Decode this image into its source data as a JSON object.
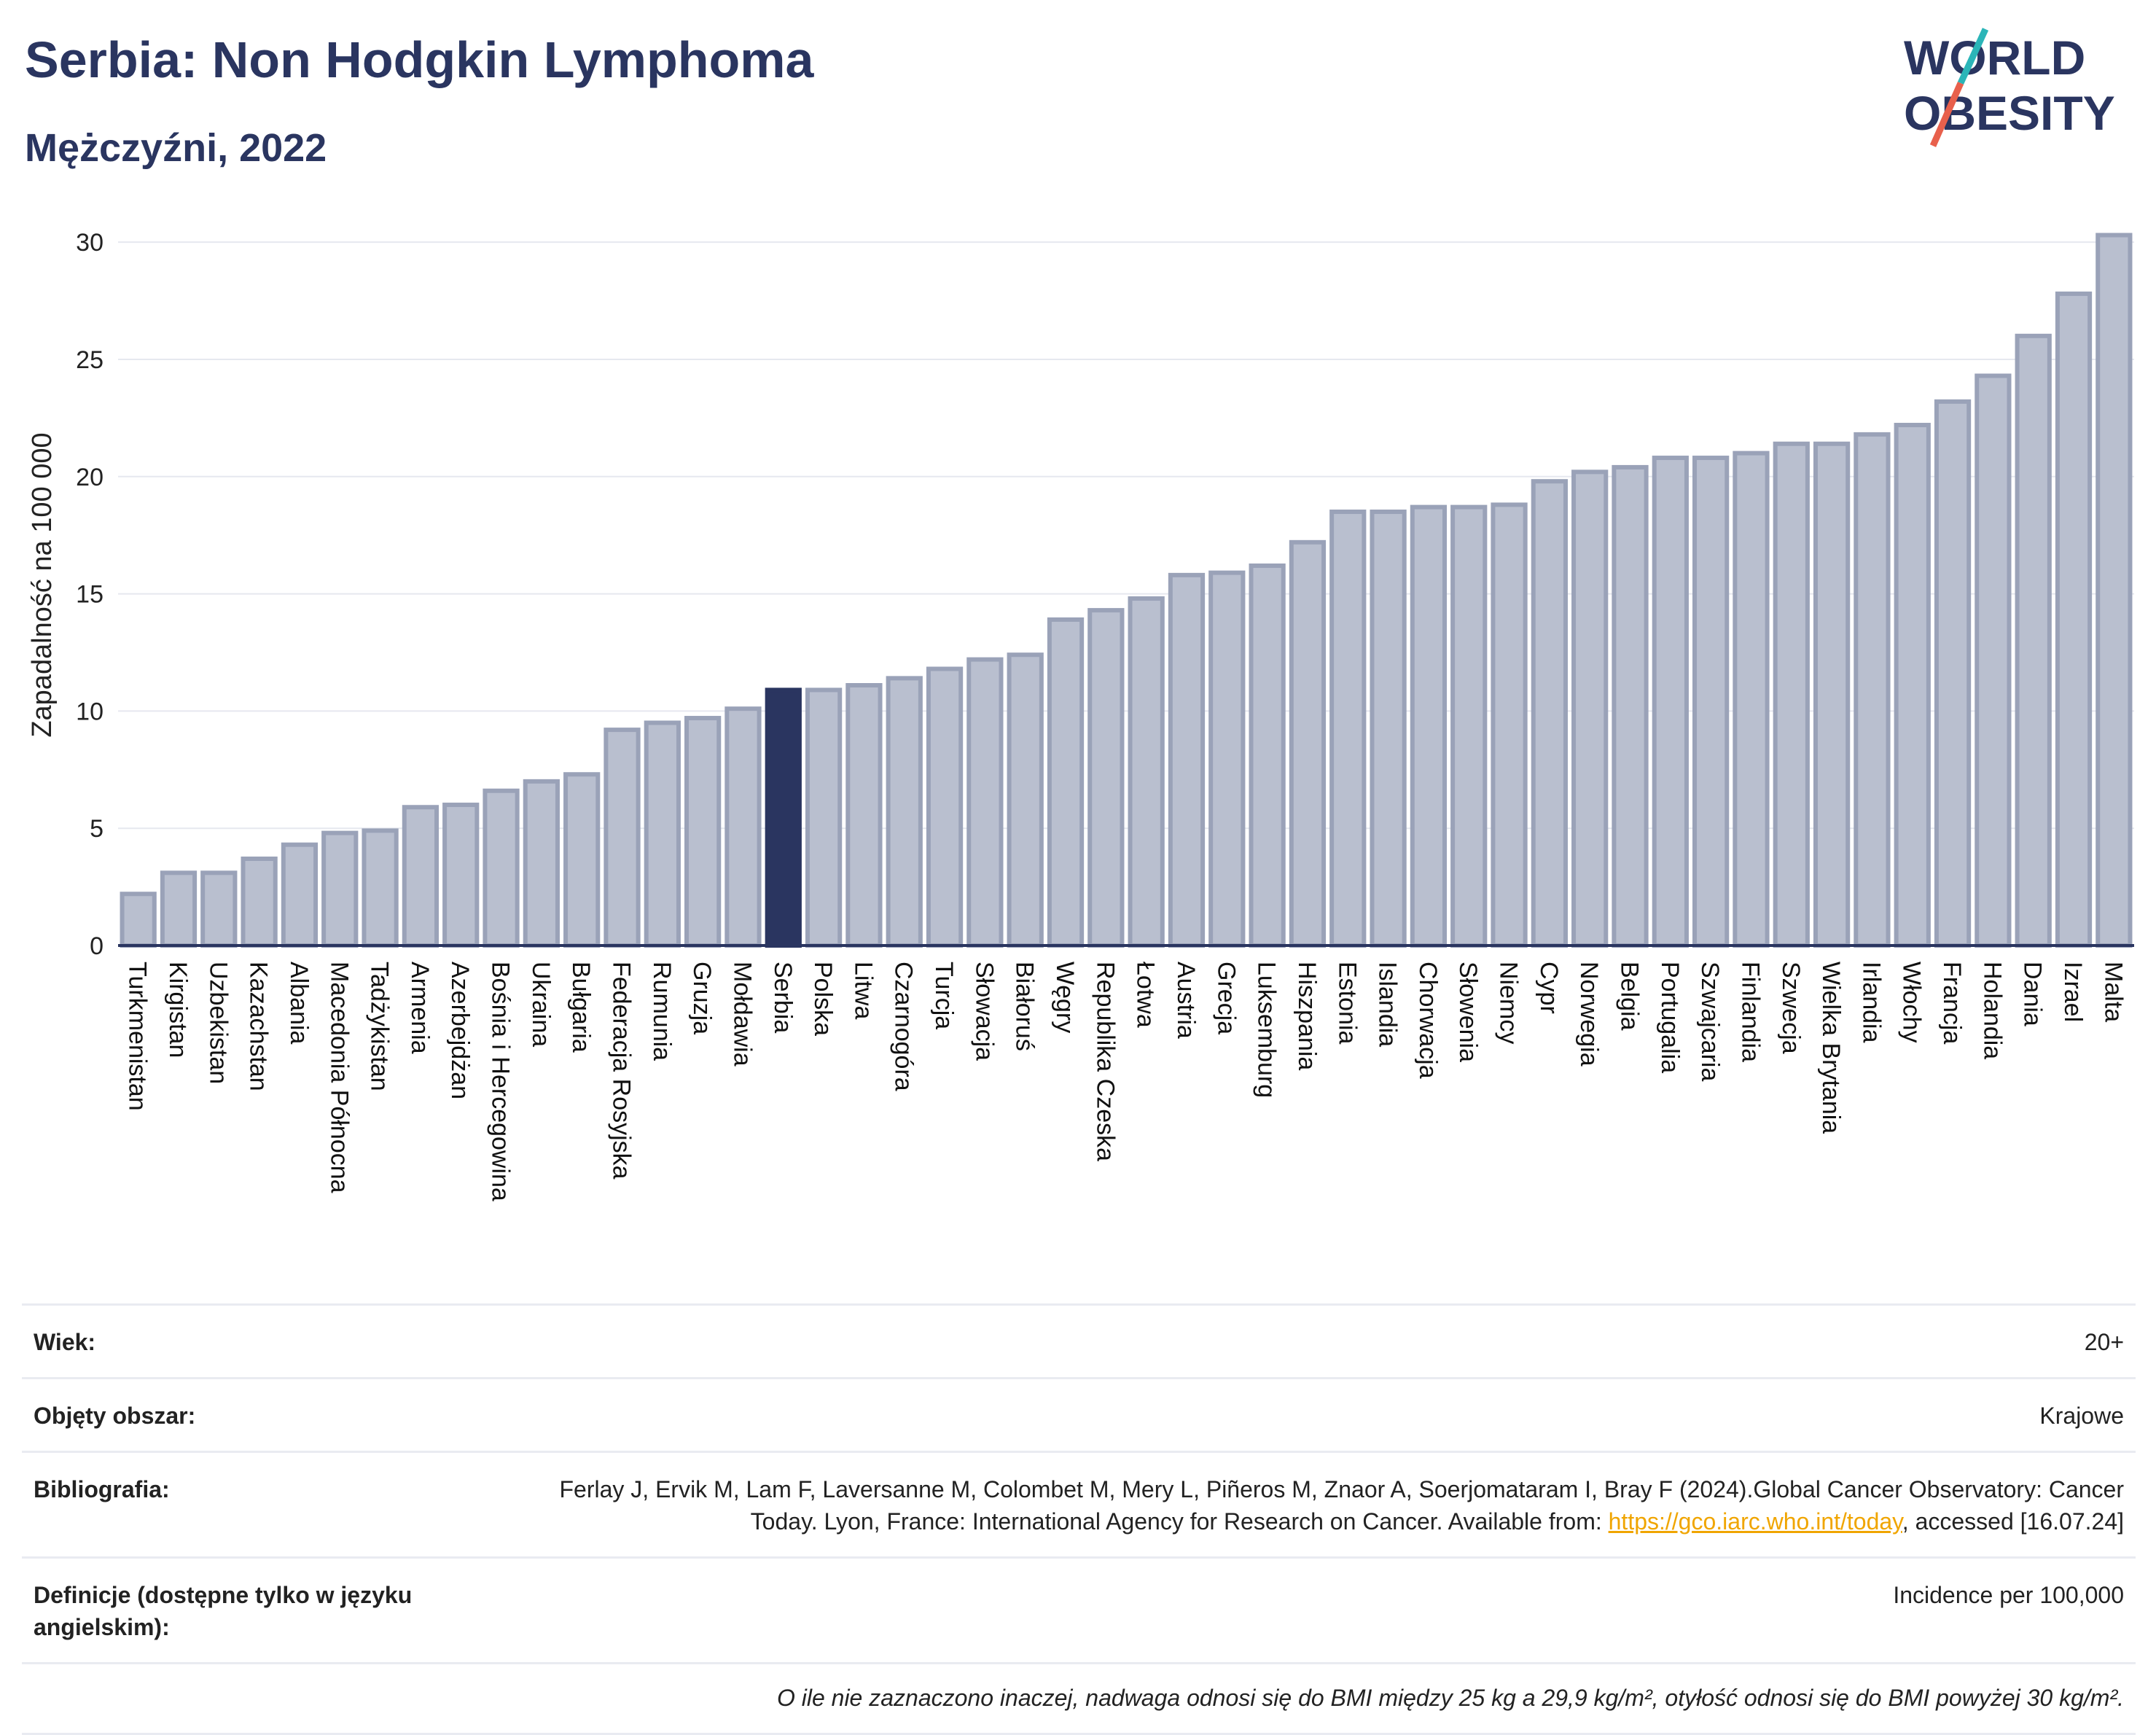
{
  "header": {
    "title": "Serbia: Non Hodgkin Lymphoma",
    "subtitle": "Mężczyźni, 2022"
  },
  "logo": {
    "line1": "WORLD",
    "line2": "OBESITY",
    "accent_colors": [
      "#2bb5b8",
      "#e8604c"
    ]
  },
  "chart_data": {
    "type": "bar",
    "ylabel": "Zapadalność na 100 000",
    "ylim": [
      0,
      31
    ],
    "yticks": [
      0,
      5,
      10,
      15,
      20,
      25,
      30
    ],
    "grid": true,
    "highlight": "Serbia",
    "colors": {
      "bar": "#b9bfcf",
      "bar_border": "#9aa2b8",
      "highlight": "#2a3560",
      "grid": "#e6e8ef",
      "axis": "#2a3560"
    },
    "categories": [
      "Turkmenistan",
      "Kirgistan",
      "Uzbekistan",
      "Kazachstan",
      "Albania",
      "Macedonia Północna",
      "Tadżykistan",
      "Armenia",
      "Azerbejdżan",
      "Bośnia i Hercegowina",
      "Ukraina",
      "Bułgaria",
      "Federacja Rosyjska",
      "Rumunia",
      "Gruzja",
      "Mołdawia",
      "Serbia",
      "Polska",
      "Litwa",
      "Czarnogóra",
      "Turcja",
      "Słowacja",
      "Białoruś",
      "Węgry",
      "Republika Czeska",
      "Łotwa",
      "Austria",
      "Grecja",
      "Luksemburg",
      "Hiszpania",
      "Estonia",
      "Islandia",
      "Chorwacja",
      "Słowenia",
      "Niemcy",
      "Cypr",
      "Norwegia",
      "Belgia",
      "Portugalia",
      "Szwajcaria",
      "Finlandia",
      "Szwecja",
      "Wielka Brytania",
      "Irlandia",
      "Włochy",
      "Francja",
      "Holandia",
      "Dania",
      "Izrael",
      "Malta"
    ],
    "values": [
      2.2,
      3.1,
      3.1,
      3.7,
      4.3,
      4.8,
      4.9,
      5.9,
      6.0,
      6.6,
      7.0,
      7.3,
      9.2,
      9.5,
      9.7,
      10.1,
      10.9,
      10.9,
      11.1,
      11.4,
      11.8,
      12.2,
      12.4,
      13.9,
      14.3,
      14.8,
      15.8,
      15.9,
      16.2,
      17.2,
      18.5,
      18.5,
      18.7,
      18.7,
      18.8,
      19.8,
      20.2,
      20.4,
      20.8,
      20.8,
      21.0,
      21.4,
      21.4,
      21.8,
      22.2,
      23.2,
      24.3,
      26.0,
      27.8,
      30.3
    ]
  },
  "meta": {
    "age_label": "Wiek:",
    "age_value": "20+",
    "area_label": "Objęty obszar:",
    "area_value": "Krajowe",
    "bib_label": "Bibliografia:",
    "bib_text_1": "Ferlay J, Ervik M, Lam F, Laversanne M, Colombet M, Mery L, Piñeros M, Znaor A, Soerjomataram I, Bray F (2024).Global Cancer Observatory: Cancer Today. Lyon, France: International Agency for Research on Cancer. Available from: ",
    "bib_link": "https://gco.iarc.who.int/today",
    "bib_text_2": ", accessed [16.07.24]",
    "def_label": "Definicje (dostępne tylko w języku angielskim):",
    "def_value": "Incidence per 100,000",
    "note": "O ile nie zaznaczono inaczej, nadwaga odnosi się do BMI między 25 kg a 29,9 kg/m², otyłość odnosi się do BMI powyżej 30 kg/m²."
  }
}
